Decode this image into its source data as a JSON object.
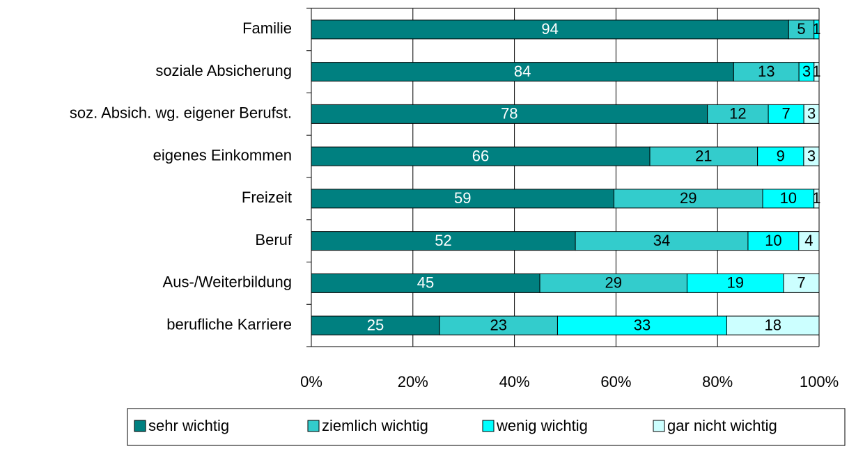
{
  "chart_data": {
    "type": "bar",
    "orientation": "horizontal",
    "stacked": "percent",
    "categories": [
      "Familie",
      "soziale Absicherung",
      "soz. Absich. wg. eigener Berufst.",
      "eigenes Einkommen",
      "Freizeit",
      "Beruf",
      "Aus-/Weiterbildung",
      "berufliche Karriere"
    ],
    "series": [
      {
        "name": "sehr wichtig",
        "color": "#008080",
        "values": [
          94,
          84,
          78,
          66,
          59,
          52,
          45,
          25
        ]
      },
      {
        "name": "ziemlich wichtig",
        "color": "#33cccc",
        "values": [
          5,
          13,
          12,
          21,
          29,
          34,
          29,
          23
        ]
      },
      {
        "name": "wenig wichtig",
        "color": "#00ffff",
        "values": [
          1,
          3,
          7,
          9,
          10,
          10,
          19,
          33
        ]
      },
      {
        "name": "gar nicht wichtig",
        "color": "#ccffff",
        "values": [
          null,
          1,
          3,
          3,
          1,
          4,
          7,
          18
        ]
      }
    ],
    "xlim": [
      0,
      100
    ],
    "xticks": [
      {
        "value": 0,
        "label": "0%"
      },
      {
        "value": 20,
        "label": "20%"
      },
      {
        "value": 40,
        "label": "40%"
      },
      {
        "value": 60,
        "label": "60%"
      },
      {
        "value": 80,
        "label": "80%"
      },
      {
        "value": 100,
        "label": "100%"
      }
    ],
    "grid": true,
    "legend": "bottom"
  }
}
